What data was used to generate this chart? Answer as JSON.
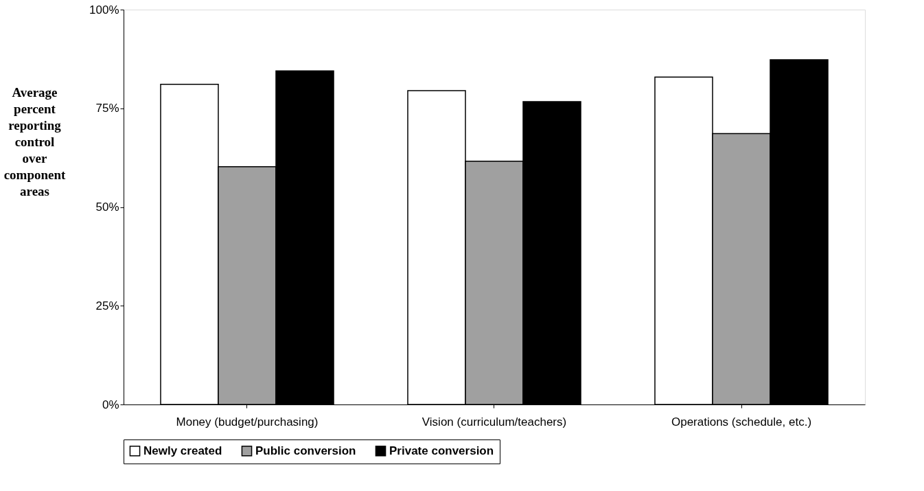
{
  "chart_data": {
    "type": "bar",
    "ylabel": "Average percent reporting control over component areas",
    "categories": [
      "Money (budget/purchasing)",
      "Vision (curriculum/teachers)",
      "Operations (schedule, etc.)"
    ],
    "series": [
      {
        "name": "Newly created",
        "color": "#ffffff",
        "values": [
          81.1,
          79.5,
          82.9
        ]
      },
      {
        "name": "Public conversion",
        "color": "#a0a0a0",
        "values": [
          60.2,
          61.6,
          68.6
        ]
      },
      {
        "name": "Private conversion",
        "color": "#000000",
        "values": [
          84.5,
          76.7,
          87.3
        ]
      }
    ],
    "ylim": [
      0,
      100
    ],
    "yticks": [
      {
        "value": 0,
        "label": "0%"
      },
      {
        "value": 25,
        "label": "25%"
      },
      {
        "value": 50,
        "label": "50%"
      },
      {
        "value": 75,
        "label": "75%"
      },
      {
        "value": 100,
        "label": "100%"
      }
    ],
    "grid": false,
    "legend": "bottom"
  }
}
